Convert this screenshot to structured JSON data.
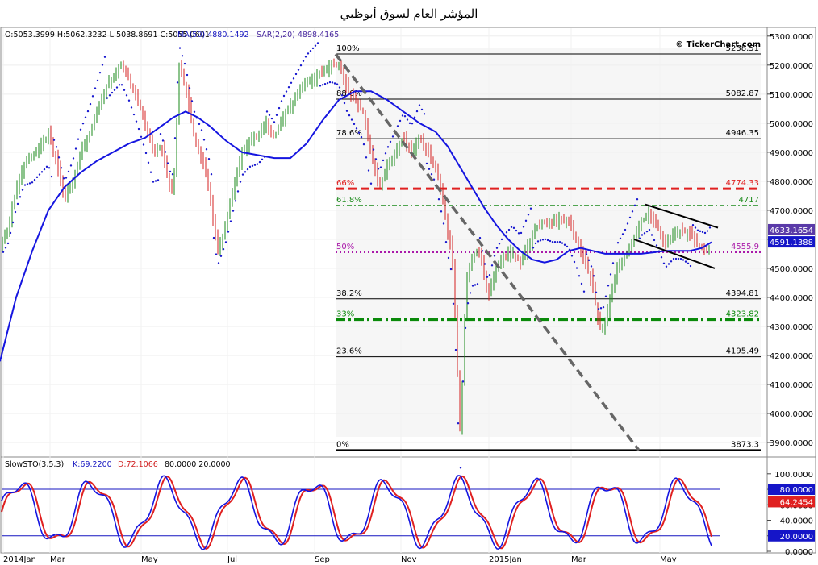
{
  "title": "المؤشر العام لسوق أبوظبي",
  "watermark": "© TickerChart.com",
  "header": {
    "ohlc": "O:5053.3999 H:5062.3232 L:5038.8691 C:5055.0601",
    "ma": "MA(50) 4880.1492",
    "sar": "SAR(2,20) 4898.4165"
  },
  "stoch_header": {
    "name": "SlowSTO(3,5,3)",
    "k": "K:69.2200",
    "d": "D:72.1066",
    "levels": "80.0000 20.0000"
  },
  "colors": {
    "candle_up": "#1a8a1a",
    "candle_down": "#d42020",
    "ma": "#1515e0",
    "sar": "#1a1ad0",
    "trend": "#666666",
    "fib": "#000000",
    "fib66": "#e02020",
    "fib618": "#1a8a1a",
    "fib50": "#aa1aaa",
    "fib33": "#0a8a0a",
    "stoch_k": "#1515e0",
    "stoch_d": "#e02020",
    "stoch_level": "#1515c0"
  },
  "chart_data": {
    "type": "candlestick",
    "y_axis": {
      "ticks": [
        "5300.0000",
        "5200.0000",
        "5100.0000",
        "5000.0000",
        "4900.0000",
        "4800.0000",
        "4700.0000",
        "4600.0000",
        "4500.0000",
        "4400.0000",
        "4300.0000",
        "4200.0000",
        "4100.0000",
        "4000.0000",
        "3900.0000"
      ],
      "ylim": [
        3850,
        5330
      ]
    },
    "x_axis": {
      "labels": [
        "2014Jan",
        "Mar",
        "May",
        "Jul",
        "Sep",
        "Nov",
        "2015Jan",
        "Mar",
        "May"
      ]
    },
    "price_tags": [
      {
        "value": "4633.1654",
        "price": 4633.1654,
        "color": "#5a3aa8"
      },
      {
        "value": "4591.1388",
        "price": 4591.1388,
        "color": "#1515c8"
      }
    ],
    "fib_levels": [
      {
        "pct": "100%",
        "value": "5238.51",
        "price": 5238.51,
        "style": "solid",
        "color": "#000000"
      },
      {
        "pct": "88.6%",
        "value": "5082.87",
        "price": 5082.87,
        "style": "solid",
        "color": "#000000"
      },
      {
        "pct": "78.6%",
        "value": "4946.35",
        "price": 4946.35,
        "style": "solid",
        "color": "#000000"
      },
      {
        "pct": "66%",
        "value": "4774.33",
        "price": 4774.33,
        "style": "dash",
        "color": "#e02020"
      },
      {
        "pct": "61.8%",
        "value": "4717",
        "price": 4717,
        "style": "dashdot",
        "color": "#1a8a1a"
      },
      {
        "pct": "50%",
        "value": "4555.9",
        "price": 4555.9,
        "style": "dot",
        "color": "#aa1aaa"
      },
      {
        "pct": "38.2%",
        "value": "4394.81",
        "price": 4394.81,
        "style": "solid",
        "color": "#000000"
      },
      {
        "pct": "33%",
        "value": "4323.82",
        "price": 4323.82,
        "style": "dashdotbold",
        "color": "#0a8a0a"
      },
      {
        "pct": "23.6%",
        "value": "4195.49",
        "price": 4195.49,
        "style": "solid",
        "color": "#000000"
      },
      {
        "pct": "0%",
        "value": "3873.3",
        "price": 3873.3,
        "style": "bold",
        "color": "#000000"
      }
    ],
    "close_path": [
      [
        0,
        4580
      ],
      [
        10,
        4640
      ],
      [
        20,
        4770
      ],
      [
        30,
        4860
      ],
      [
        40,
        4880
      ],
      [
        50,
        4920
      ],
      [
        60,
        4960
      ],
      [
        70,
        4870
      ],
      [
        80,
        4740
      ],
      [
        90,
        4800
      ],
      [
        100,
        4900
      ],
      [
        110,
        4960
      ],
      [
        120,
        5040
      ],
      [
        130,
        5120
      ],
      [
        140,
        5160
      ],
      [
        150,
        5200
      ],
      [
        160,
        5150
      ],
      [
        170,
        5080
      ],
      [
        180,
        5000
      ],
      [
        190,
        4900
      ],
      [
        200,
        4920
      ],
      [
        210,
        4780
      ],
      [
        215,
        4760
      ],
      [
        222,
        5200
      ],
      [
        230,
        5120
      ],
      [
        240,
        4960
      ],
      [
        250,
        4880
      ],
      [
        260,
        4760
      ],
      [
        265,
        4650
      ],
      [
        270,
        4560
      ],
      [
        280,
        4650
      ],
      [
        290,
        4780
      ],
      [
        300,
        4900
      ],
      [
        310,
        4940
      ],
      [
        320,
        4960
      ],
      [
        330,
        5000
      ],
      [
        340,
        4950
      ],
      [
        350,
        5020
      ],
      [
        360,
        5060
      ],
      [
        370,
        5100
      ],
      [
        380,
        5140
      ],
      [
        390,
        5160
      ],
      [
        400,
        5180
      ],
      [
        410,
        5200
      ],
      [
        420,
        5200
      ],
      [
        430,
        5120
      ],
      [
        440,
        5080
      ],
      [
        450,
        5040
      ],
      [
        460,
        4900
      ],
      [
        470,
        4780
      ],
      [
        480,
        4850
      ],
      [
        490,
        4900
      ],
      [
        500,
        4950
      ],
      [
        510,
        4900
      ],
      [
        520,
        4960
      ],
      [
        530,
        4900
      ],
      [
        540,
        4850
      ],
      [
        550,
        4720
      ],
      [
        555,
        4620
      ],
      [
        560,
        4560
      ],
      [
        565,
        4300
      ],
      [
        568,
        4050
      ],
      [
        571,
        3900
      ],
      [
        574,
        4200
      ],
      [
        578,
        4450
      ],
      [
        585,
        4540
      ],
      [
        595,
        4560
      ],
      [
        605,
        4400
      ],
      [
        615,
        4500
      ],
      [
        625,
        4540
      ],
      [
        635,
        4560
      ],
      [
        645,
        4520
      ],
      [
        655,
        4580
      ],
      [
        665,
        4640
      ],
      [
        675,
        4660
      ],
      [
        685,
        4660
      ],
      [
        695,
        4670
      ],
      [
        705,
        4660
      ],
      [
        715,
        4600
      ],
      [
        725,
        4520
      ],
      [
        735,
        4440
      ],
      [
        742,
        4300
      ],
      [
        748,
        4300
      ],
      [
        755,
        4380
      ],
      [
        765,
        4500
      ],
      [
        775,
        4540
      ],
      [
        785,
        4600
      ],
      [
        795,
        4660
      ],
      [
        805,
        4690
      ],
      [
        815,
        4640
      ],
      [
        825,
        4580
      ],
      [
        835,
        4620
      ],
      [
        845,
        4630
      ],
      [
        855,
        4620
      ],
      [
        865,
        4580
      ],
      [
        875,
        4560
      ],
      [
        882,
        4580
      ]
    ],
    "ma_path": [
      [
        0,
        4180
      ],
      [
        20,
        4400
      ],
      [
        40,
        4560
      ],
      [
        60,
        4700
      ],
      [
        80,
        4780
      ],
      [
        100,
        4830
      ],
      [
        120,
        4870
      ],
      [
        140,
        4900
      ],
      [
        160,
        4930
      ],
      [
        180,
        4950
      ],
      [
        200,
        4990
      ],
      [
        215,
        5020
      ],
      [
        230,
        5040
      ],
      [
        245,
        5020
      ],
      [
        260,
        4990
      ],
      [
        280,
        4940
      ],
      [
        300,
        4900
      ],
      [
        320,
        4890
      ],
      [
        340,
        4880
      ],
      [
        360,
        4880
      ],
      [
        380,
        4930
      ],
      [
        400,
        5010
      ],
      [
        420,
        5080
      ],
      [
        440,
        5110
      ],
      [
        460,
        5110
      ],
      [
        480,
        5080
      ],
      [
        500,
        5040
      ],
      [
        520,
        5000
      ],
      [
        540,
        4970
      ],
      [
        555,
        4920
      ],
      [
        570,
        4850
      ],
      [
        585,
        4780
      ],
      [
        600,
        4710
      ],
      [
        615,
        4650
      ],
      [
        630,
        4600
      ],
      [
        645,
        4560
      ],
      [
        660,
        4530
      ],
      [
        675,
        4520
      ],
      [
        690,
        4530
      ],
      [
        705,
        4560
      ],
      [
        720,
        4570
      ],
      [
        735,
        4560
      ],
      [
        750,
        4550
      ],
      [
        765,
        4550
      ],
      [
        780,
        4550
      ],
      [
        795,
        4550
      ],
      [
        810,
        4555
      ],
      [
        825,
        4560
      ],
      [
        840,
        4560
      ],
      [
        855,
        4560
      ],
      [
        870,
        4570
      ],
      [
        882,
        4590
      ]
    ],
    "channel": {
      "upper": [
        [
          800,
          4720
        ],
        [
          890,
          4640
        ]
      ],
      "lower": [
        [
          786,
          4600
        ],
        [
          886,
          4500
        ]
      ]
    },
    "trendline": [
      [
        416,
        5238
      ],
      [
        792,
        3873
      ]
    ],
    "stochastic": {
      "ylim": [
        0,
        105
      ],
      "ticks": [
        "100.0000",
        "80.0000",
        "60.0000",
        "40.0000",
        "20.0000",
        "0.0000"
      ],
      "levels": [
        80,
        20
      ],
      "tags": [
        {
          "value": "80.0000",
          "level": 80,
          "color": "#1515c8"
        },
        {
          "value": "64.2454",
          "level": 64,
          "color": "#e02020"
        },
        {
          "value": "20.0000",
          "level": 20,
          "color": "#1515c8"
        }
      ]
    }
  }
}
